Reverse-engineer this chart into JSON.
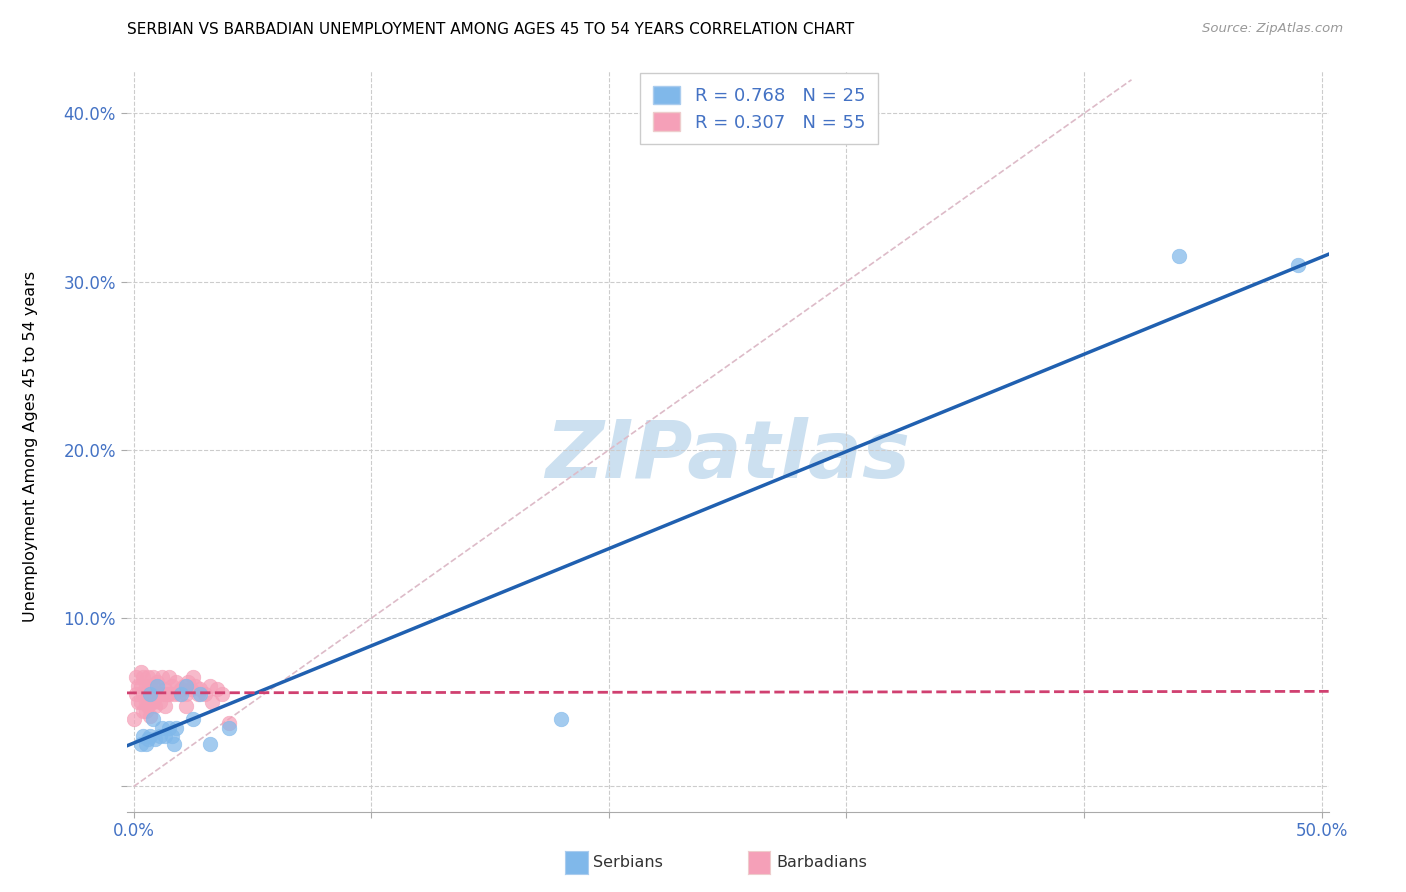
{
  "title": "SERBIAN VS BARBADIAN UNEMPLOYMENT AMONG AGES 45 TO 54 YEARS CORRELATION CHART",
  "source": "Source: ZipAtlas.com",
  "ylabel": "Unemployment Among Ages 45 to 54 years",
  "xlim": [
    -0.003,
    0.503
  ],
  "ylim": [
    -0.015,
    0.425
  ],
  "xticks": [
    0.0,
    0.1,
    0.2,
    0.3,
    0.4,
    0.5
  ],
  "xticklabels": [
    "0.0%",
    "",
    "",
    "",
    "",
    "50.0%"
  ],
  "ytick_positions": [
    0.0,
    0.1,
    0.2,
    0.3,
    0.4
  ],
  "yticklabels_left": [
    "",
    "10.0%",
    "20.0%",
    "30.0%",
    "40.0%"
  ],
  "serbian_color": "#80b8ea",
  "serbian_edge_color": "#80b8ea",
  "barbadian_color": "#f5a0b8",
  "barbadian_edge_color": "#f5a0b8",
  "trendline_serbian_color": "#2060b0",
  "trendline_barbadian_color": "#d04070",
  "diagonal_color": "#ddbbc8",
  "grid_color": "#cccccc",
  "watermark_color": "#cce0f0",
  "serbian_R": 0.768,
  "serbian_N": 25,
  "barbadian_R": 0.307,
  "barbadian_N": 55,
  "serbian_x": [
    0.003,
    0.004,
    0.005,
    0.006,
    0.007,
    0.007,
    0.008,
    0.009,
    0.01,
    0.011,
    0.012,
    0.013,
    0.015,
    0.016,
    0.017,
    0.018,
    0.02,
    0.022,
    0.025,
    0.028,
    0.032,
    0.04,
    0.18,
    0.44,
    0.49
  ],
  "serbian_y": [
    0.025,
    0.03,
    0.025,
    0.028,
    0.055,
    0.03,
    0.04,
    0.028,
    0.06,
    0.03,
    0.035,
    0.03,
    0.035,
    0.03,
    0.025,
    0.035,
    0.055,
    0.06,
    0.04,
    0.055,
    0.025,
    0.035,
    0.04,
    0.315,
    0.31
  ],
  "barbadian_x": [
    0.0,
    0.001,
    0.001,
    0.002,
    0.002,
    0.003,
    0.003,
    0.003,
    0.004,
    0.004,
    0.004,
    0.005,
    0.005,
    0.005,
    0.006,
    0.006,
    0.006,
    0.007,
    0.007,
    0.007,
    0.008,
    0.008,
    0.008,
    0.009,
    0.009,
    0.01,
    0.01,
    0.011,
    0.012,
    0.012,
    0.013,
    0.013,
    0.014,
    0.015,
    0.015,
    0.016,
    0.017,
    0.018,
    0.019,
    0.02,
    0.021,
    0.022,
    0.022,
    0.023,
    0.024,
    0.025,
    0.026,
    0.027,
    0.028,
    0.03,
    0.032,
    0.033,
    0.035,
    0.037,
    0.04
  ],
  "barbadian_y": [
    0.04,
    0.065,
    0.055,
    0.06,
    0.05,
    0.068,
    0.06,
    0.05,
    0.065,
    0.055,
    0.045,
    0.06,
    0.05,
    0.045,
    0.065,
    0.055,
    0.048,
    0.06,
    0.05,
    0.042,
    0.065,
    0.06,
    0.05,
    0.055,
    0.048,
    0.062,
    0.055,
    0.05,
    0.065,
    0.055,
    0.058,
    0.048,
    0.055,
    0.065,
    0.055,
    0.06,
    0.055,
    0.062,
    0.055,
    0.058,
    0.06,
    0.055,
    0.048,
    0.062,
    0.058,
    0.065,
    0.06,
    0.055,
    0.058,
    0.055,
    0.06,
    0.05,
    0.058,
    0.055,
    0.038
  ]
}
